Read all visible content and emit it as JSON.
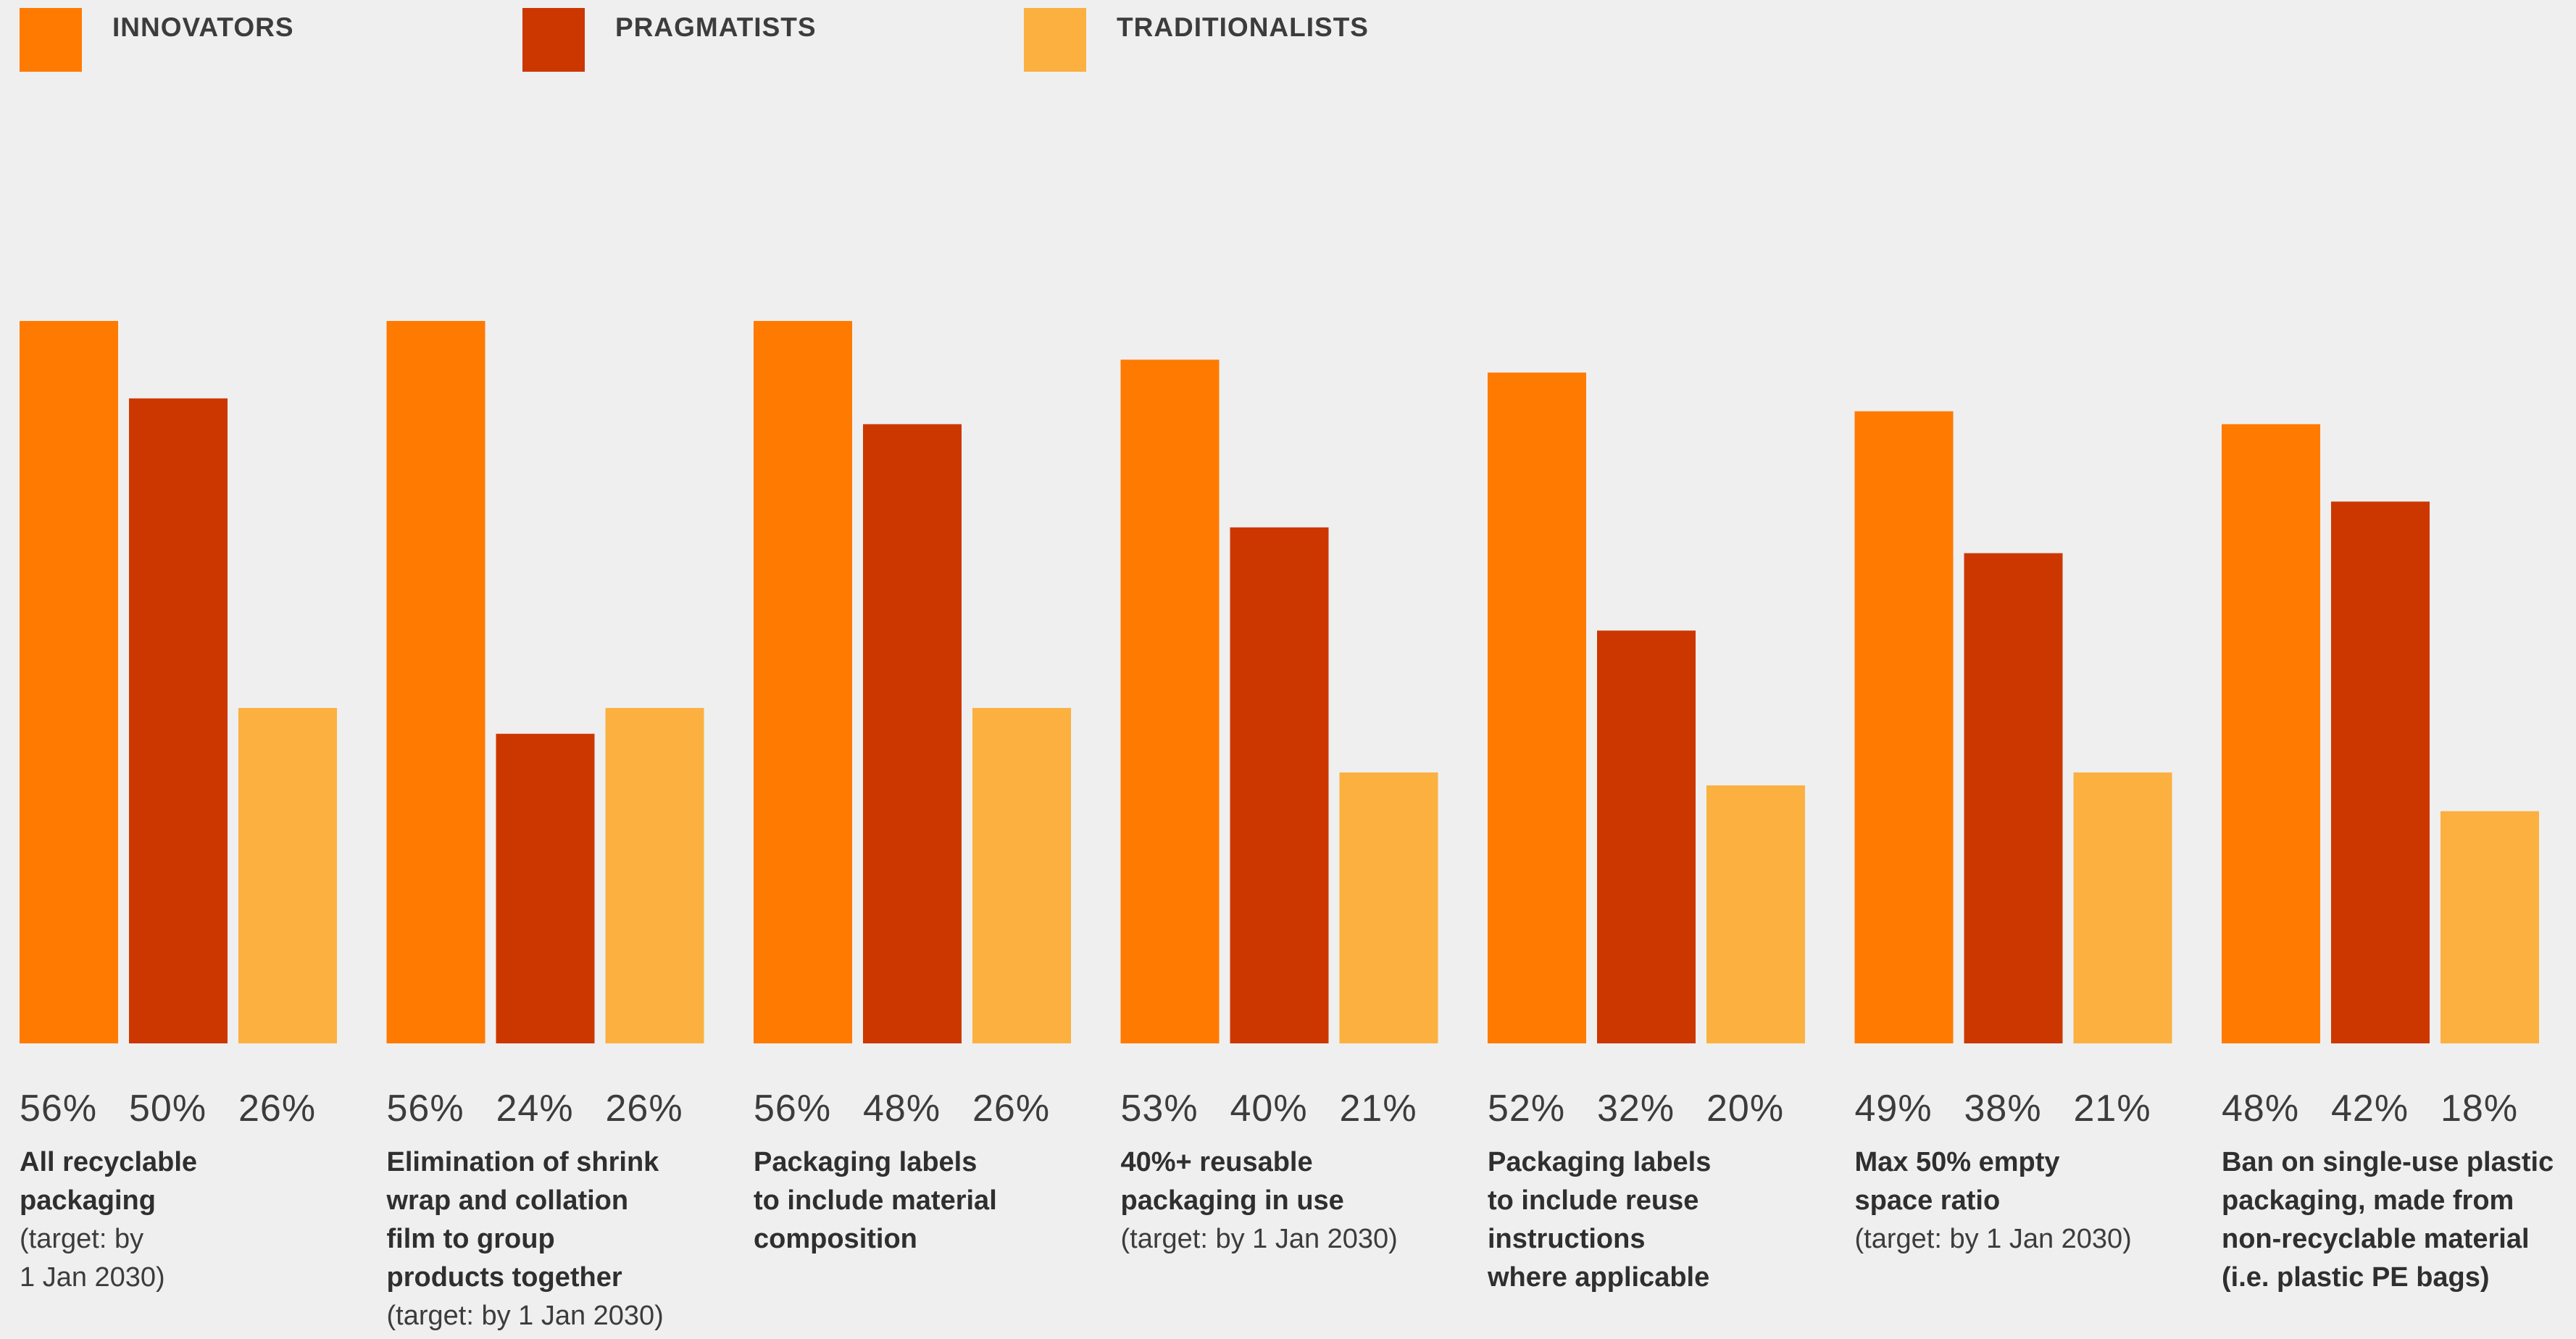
{
  "colors": {
    "innovators": "#ff7a00",
    "pragmatists": "#cc3700",
    "traditionalists": "#fbb040",
    "background": "#efefef"
  },
  "legend": [
    {
      "label": "INNOVATORS",
      "color": "#ff7a00"
    },
    {
      "label": "PRAGMATISTS",
      "color": "#cc3700"
    },
    {
      "label": "TRADITIONALISTS",
      "color": "#fbb040"
    }
  ],
  "chart_data": {
    "type": "bar",
    "title": "",
    "xlabel": "",
    "ylabel": "",
    "ylim": [
      0,
      56
    ],
    "grid": false,
    "legend_position": "top-left",
    "categories": [
      "All recyclable packaging (target: by 1 Jan 2030)",
      "Elimination of shrink wrap and collation film to group products together (target: by 1 Jan 2030)",
      "Packaging labels to include material composition",
      "40%+ reusable packaging in use (target: by 1 Jan 2030)",
      "Packaging labels to include reuse instructions where applicable",
      "Max 50% empty space ratio (target: by 1 Jan 2030)",
      "Ban on single-use plastic packaging, made from non-recyclable material (i.e. plastic PE bags)"
    ],
    "series": [
      {
        "name": "INNOVATORS",
        "values": [
          56,
          56,
          56,
          53,
          52,
          49,
          48
        ]
      },
      {
        "name": "PRAGMATISTS",
        "values": [
          50,
          24,
          48,
          40,
          32,
          38,
          42
        ]
      },
      {
        "name": "TRADITIONALISTS",
        "values": [
          26,
          26,
          26,
          21,
          20,
          21,
          18
        ]
      }
    ],
    "value_labels": [
      [
        "56%",
        "50%",
        "26%"
      ],
      [
        "56%",
        "24%",
        "26%"
      ],
      [
        "56%",
        "48%",
        "26%"
      ],
      [
        "53%",
        "40%",
        "21%"
      ],
      [
        "52%",
        "32%",
        "20%"
      ],
      [
        "49%",
        "38%",
        "21%"
      ],
      [
        "48%",
        "42%",
        "18%"
      ]
    ]
  },
  "groups": [
    {
      "values": [
        "56%",
        "50%",
        "26%"
      ],
      "main": [
        "All recyclable",
        "packaging"
      ],
      "sub": [
        "(target: by",
        "1 Jan 2030)"
      ]
    },
    {
      "values": [
        "56%",
        "24%",
        "26%"
      ],
      "main": [
        "Elimination of shrink",
        "wrap and collation",
        "film to group",
        "products together"
      ],
      "sub": [
        "(target: by 1 Jan 2030)"
      ]
    },
    {
      "values": [
        "56%",
        "48%",
        "26%"
      ],
      "main": [
        "Packaging labels",
        "to include material",
        "composition"
      ],
      "sub": []
    },
    {
      "values": [
        "53%",
        "40%",
        "21%"
      ],
      "main": [
        "40%+ reusable",
        "packaging in use"
      ],
      "sub": [
        "(target: by 1 Jan 2030)"
      ]
    },
    {
      "values": [
        "52%",
        "32%",
        "20%"
      ],
      "main": [
        "Packaging labels",
        "to include reuse",
        "instructions",
        "where applicable"
      ],
      "sub": []
    },
    {
      "values": [
        "49%",
        "38%",
        "21%"
      ],
      "main": [
        "Max 50% empty",
        "space ratio"
      ],
      "sub": [
        "(target: by 1 Jan 2030)"
      ]
    },
    {
      "values": [
        "48%",
        "42%",
        "18%"
      ],
      "main": [
        "Ban on single-use plastic",
        "packaging, made from",
        "non-recyclable material",
        "(i.e. plastic PE bags)"
      ],
      "sub": []
    }
  ]
}
